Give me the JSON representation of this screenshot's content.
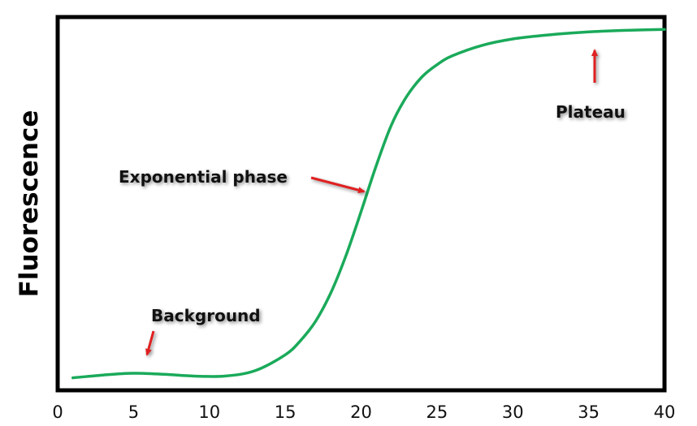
{
  "chart_data": {
    "type": "line",
    "title": "",
    "xlabel": "",
    "ylabel": "Fluorescence",
    "xlim": [
      0,
      40
    ],
    "ylim": [
      0,
      100
    ],
    "x_ticks": [
      "0",
      "5",
      "10",
      "15",
      "20",
      "25",
      "30",
      "35",
      "40"
    ],
    "grid": false,
    "series": [
      {
        "color": "#1aaa5a",
        "x": [
          1,
          3,
          5,
          7,
          9,
          11,
          13,
          15,
          16,
          17,
          18,
          19,
          20,
          21,
          22,
          23,
          24,
          25,
          26,
          28,
          30,
          32,
          34,
          36,
          38,
          40
        ],
        "y": [
          1.0,
          1.8,
          2.3,
          2.0,
          1.5,
          1.5,
          3.0,
          7.5,
          11.5,
          17.0,
          25.0,
          35.5,
          48.0,
          61.0,
          72.5,
          80.5,
          86.0,
          89.5,
          92.0,
          95.0,
          96.8,
          97.8,
          98.5,
          99.0,
          99.3,
          99.5
        ]
      }
    ],
    "annotations": [
      {
        "label": "Background",
        "x": 6.1,
        "y": 2.0,
        "color": "#e02020"
      },
      {
        "label": "Exponential phase",
        "x": 21.1,
        "y": 54.0,
        "color": "#e02020"
      },
      {
        "label": "Plateau",
        "x": 36.0,
        "y": 97.0,
        "color": "#e02020"
      }
    ]
  }
}
